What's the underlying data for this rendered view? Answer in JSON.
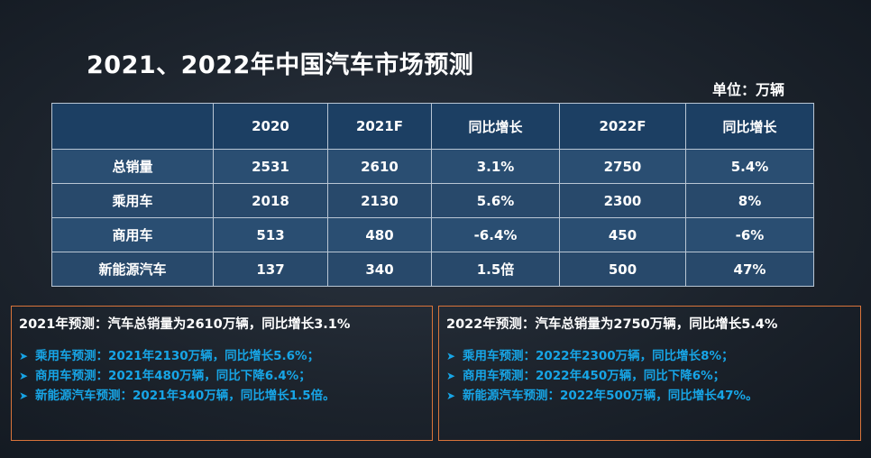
{
  "slide": {
    "title": "2021、2022年中国汽车市场预测",
    "unit": "单位：万辆"
  },
  "table": {
    "headers": [
      "",
      "2020",
      "2021F",
      "同比增长",
      "2022F",
      "同比增长"
    ],
    "rows": [
      {
        "cells": [
          "总销量",
          "2531",
          "2610",
          "3.1%",
          "2750",
          "5.4%"
        ]
      },
      {
        "cells": [
          "乘用车",
          "2018",
          "2130",
          "5.6%",
          "2300",
          "8%"
        ]
      },
      {
        "cells": [
          "商用车",
          "513",
          "480",
          "-6.4%",
          "450",
          "-6%"
        ]
      },
      {
        "cells": [
          "新能源汽车",
          "137",
          "340",
          "1.5倍",
          "500",
          "47%"
        ]
      }
    ]
  },
  "panel_2021": {
    "heading": "2021年预测：汽车总销量为2610万辆，同比增长3.1%",
    "bullet_icon": "arrow-right-icon",
    "items": [
      "乘用车预测：2021年2130万辆，同比增长5.6%；",
      "商用车预测：2021年480万辆，同比下降6.4%；",
      "新能源汽车预测：2021年340万辆，同比增长1.5倍。"
    ]
  },
  "panel_2022": {
    "heading": "2022年预测：汽车总销量为2750万辆，同比增长5.4%",
    "bullet_icon": "arrow-right-icon",
    "items": [
      "乘用车预测：2022年2300万辆，同比增长8%；",
      "商用车预测：2022年450万辆，同比下降6%；",
      "新能源汽车预测：2022年500万辆，同比增长47%。"
    ]
  },
  "colors": {
    "accent_blue": "#17a5e6",
    "panel_border": "#d9743a",
    "table_header": "#1c3f63",
    "table_cell": "#2a4e72"
  }
}
